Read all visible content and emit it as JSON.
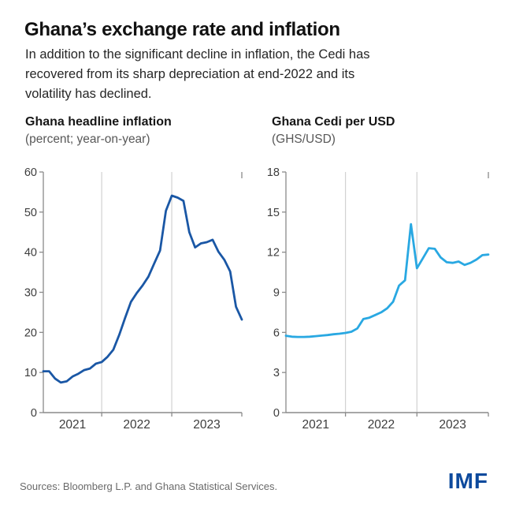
{
  "title": "Ghana’s exchange rate and inflation",
  "subtitle_lines": [
    "In addition to the significant decline in inflation, the Cedi has",
    "recovered from its sharp depreciation at end-2022 and its",
    "volatility has declined."
  ],
  "footer": {
    "source": "Sources: Bloomberg L.P. and Ghana Statistical Services.",
    "logo": "IMF"
  },
  "colors": {
    "gridline": "#d2d2d2",
    "axis": "#8a8a8a",
    "tick_label": "#3d3d3d",
    "imf_blue": "#0d4a9d"
  },
  "chart_data": [
    {
      "type": "line",
      "series_id": "inflation-line",
      "title": "Ghana headline inflation",
      "subtitle": "(percent; year-on-year)",
      "x_start": "2021-02",
      "x_end": "2023-12",
      "frequency": "monthly",
      "x_tick_labels": [
        "2021",
        "2022",
        "2023"
      ],
      "year_boundary_indices": [
        10,
        22
      ],
      "ylim": [
        0,
        60
      ],
      "yticks": [
        0,
        10,
        20,
        30,
        40,
        50,
        60
      ],
      "grid": "vertical-year-lines",
      "legend": "none",
      "line_color": "#1a57a5",
      "values": [
        10.3,
        10.3,
        8.5,
        7.5,
        7.8,
        9.0,
        9.7,
        10.6,
        11.0,
        12.2,
        12.6,
        13.9,
        15.7,
        19.4,
        23.6,
        27.6,
        29.8,
        31.7,
        33.9,
        37.2,
        40.4,
        50.3,
        54.1,
        53.6,
        52.8,
        45.0,
        41.2,
        42.2,
        42.5,
        43.1,
        40.1,
        38.1,
        35.2,
        26.4,
        23.2
      ]
    },
    {
      "type": "line",
      "series_id": "cedi-per-usd-line",
      "title": "Ghana Cedi per USD",
      "subtitle": "(GHS/USD)",
      "x_start": "2021-02",
      "x_end": "2023-12",
      "frequency": "monthly",
      "x_tick_labels": [
        "2021",
        "2022",
        "2023"
      ],
      "year_boundary_indices": [
        10,
        22
      ],
      "ylim": [
        0,
        18
      ],
      "yticks": [
        0,
        3,
        6,
        9,
        12,
        15,
        18
      ],
      "grid": "vertical-year-lines",
      "legend": "none",
      "line_color": "#29a8e2",
      "values": [
        5.75,
        5.68,
        5.66,
        5.66,
        5.68,
        5.72,
        5.76,
        5.8,
        5.86,
        5.9,
        5.96,
        6.05,
        6.3,
        7.0,
        7.1,
        7.3,
        7.5,
        7.8,
        8.3,
        9.5,
        9.9,
        14.1,
        10.8,
        11.55,
        12.3,
        12.25,
        11.6,
        11.25,
        11.2,
        11.3,
        11.05,
        11.2,
        11.45,
        11.78,
        11.82
      ]
    }
  ]
}
